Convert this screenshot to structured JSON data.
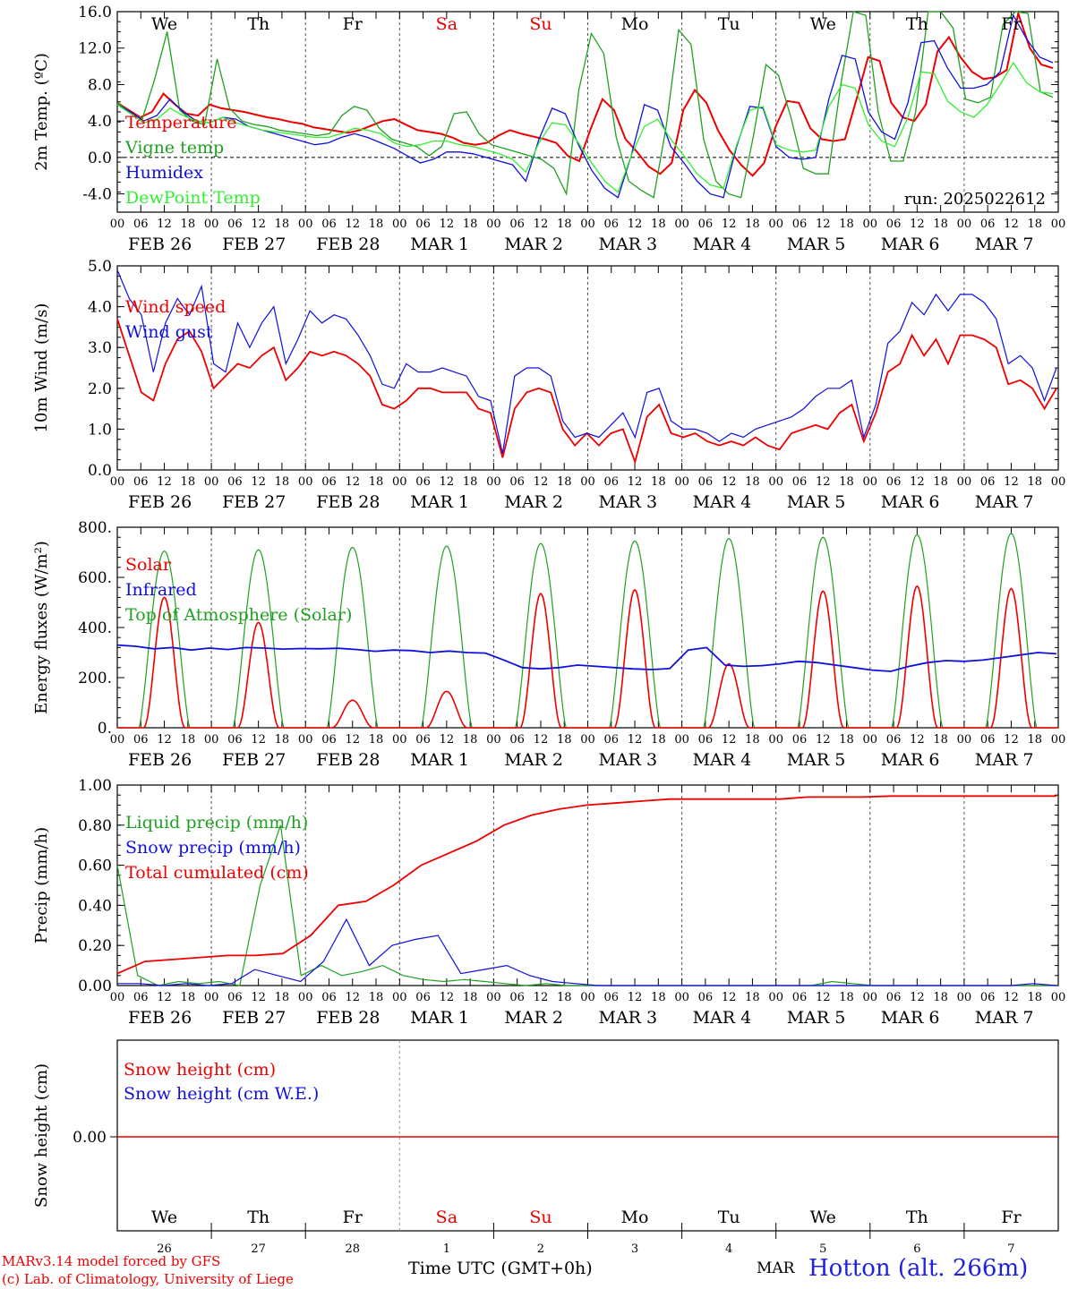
{
  "footer": {
    "credit_line1": "MARv3.14 model forced by GFS",
    "credit_line2": "(c) Lab. of Climatology, University of Liege",
    "xaxis_title": "Time UTC (GMT+0h)",
    "month_label": "MAR",
    "station": "Hotton (alt. 266m)"
  },
  "chart_data": [
    {
      "type": "line",
      "ylabel": "2m Temp. (ºC)",
      "ylim": [
        -6,
        16
      ],
      "yticks": [
        "16.0",
        "12.0",
        "8.0",
        "4.0",
        "0.0",
        "-4.0"
      ],
      "annotation": "run: 2025022612",
      "day_names": [
        "We",
        "Th",
        "Fr",
        "Sa",
        "Su",
        "Mo",
        "Tu",
        "We",
        "Th",
        "Fr"
      ],
      "date_labels": [
        "FEB 26",
        "FEB 27",
        "FEB 28",
        "MAR  1",
        "MAR  2",
        "MAR  3",
        "MAR  4",
        "MAR  5",
        "MAR  6",
        "MAR  7"
      ],
      "hour_labels": [
        "00",
        "06",
        "12",
        "18"
      ],
      "x_hours_step": 6,
      "series": [
        {
          "name": "Temperature",
          "color": "#ee0000",
          "values": [
            6.0,
            5.2,
            4.4,
            5.0,
            7.0,
            5.8,
            4.8,
            4.6,
            5.8,
            5.4,
            5.2,
            5.0,
            4.7,
            4.4,
            4.2,
            3.9,
            3.7,
            3.3,
            3.1,
            2.9,
            2.7,
            3.0,
            3.5,
            4.0,
            4.2,
            3.6,
            3.0,
            2.8,
            2.6,
            2.2,
            1.6,
            1.4,
            1.6,
            2.4,
            3.0,
            2.6,
            2.3,
            2.0,
            1.6,
            0.2,
            -0.4,
            3.2,
            6.4,
            5.2,
            2.0,
            0.6,
            -1.0,
            -1.8,
            -0.6,
            5.2,
            7.4,
            6.0,
            3.0,
            0.8,
            -0.8,
            -2.0,
            -0.6,
            3.4,
            6.2,
            6.0,
            3.2,
            2.0,
            1.8,
            2.0,
            6.4,
            11.0,
            10.6,
            6.0,
            4.4,
            4.0,
            5.8,
            11.6,
            13.2,
            11.0,
            9.4,
            8.6,
            8.8,
            9.6,
            15.8,
            12.0,
            10.2,
            9.8
          ]
        },
        {
          "name": "Vigne temp",
          "color": "#20a020",
          "values": [
            6.0,
            5.0,
            4.2,
            8.6,
            13.8,
            5.2,
            4.0,
            3.6,
            10.8,
            5.4,
            4.0,
            3.6,
            3.4,
            3.0,
            2.8,
            2.6,
            2.4,
            2.6,
            4.6,
            5.6,
            5.2,
            3.2,
            2.0,
            1.6,
            1.2,
            0.2,
            1.2,
            4.8,
            5.0,
            2.6,
            1.4,
            1.0,
            0.6,
            0.2,
            -0.2,
            -1.2,
            -4.0,
            7.4,
            13.6,
            11.4,
            2.2,
            -2.6,
            -3.6,
            -4.4,
            3.4,
            14.0,
            12.4,
            2.0,
            -2.6,
            -4.0,
            -4.4,
            2.4,
            10.2,
            9.0,
            4.4,
            -1.2,
            -1.8,
            -1.8,
            8.0,
            16.0,
            15.6,
            5.0,
            -0.4,
            -0.4,
            5.0,
            16.0,
            16.0,
            14.2,
            6.4,
            6.0,
            6.6,
            14.6,
            16.0,
            15.8,
            7.2,
            6.6
          ]
        },
        {
          "name": "Humidex",
          "color": "#1010dd",
          "values": [
            5.8,
            5.0,
            4.0,
            4.6,
            6.4,
            5.0,
            4.0,
            3.8,
            4.4,
            4.2,
            3.4,
            3.0,
            2.6,
            2.2,
            1.8,
            1.4,
            1.6,
            2.2,
            2.6,
            2.2,
            1.6,
            1.0,
            0.2,
            -0.6,
            -0.2,
            0.6,
            0.6,
            0.4,
            0.0,
            -0.4,
            -0.8,
            -2.6,
            2.0,
            5.4,
            4.8,
            1.4,
            -1.4,
            -3.4,
            -4.4,
            0.2,
            5.8,
            5.2,
            1.2,
            -0.6,
            -2.6,
            -4.0,
            -4.4,
            1.2,
            5.6,
            5.4,
            1.2,
            0.0,
            -0.2,
            0.0,
            6.4,
            11.2,
            10.8,
            5.0,
            2.8,
            2.0,
            6.0,
            12.6,
            12.8,
            9.8,
            7.6,
            7.6,
            8.0,
            9.4,
            15.6,
            13.0,
            11.0,
            10.4
          ]
        },
        {
          "name": "DewPoint Temp",
          "color": "#33ee33",
          "values": [
            5.8,
            4.8,
            3.8,
            4.2,
            5.4,
            4.6,
            4.0,
            3.8,
            4.4,
            3.8,
            3.4,
            3.0,
            2.8,
            2.6,
            2.4,
            2.2,
            2.2,
            2.6,
            3.2,
            3.0,
            2.6,
            1.6,
            1.2,
            1.4,
            1.8,
            1.8,
            1.4,
            1.2,
            0.8,
            0.4,
            -0.2,
            -1.6,
            1.6,
            3.8,
            3.6,
            1.6,
            -0.6,
            -2.6,
            -3.8,
            0.2,
            3.4,
            4.2,
            2.0,
            0.2,
            -1.8,
            -3.0,
            -3.4,
            1.4,
            5.2,
            5.6,
            1.4,
            0.8,
            0.6,
            0.8,
            5.6,
            8.0,
            7.6,
            3.6,
            1.8,
            1.2,
            4.4,
            9.4,
            9.2,
            6.2,
            5.0,
            4.4,
            5.8,
            8.0,
            10.4,
            8.2,
            7.2,
            7.0
          ]
        }
      ]
    },
    {
      "type": "line",
      "ylabel": "10m Wind (m/s)",
      "ylim": [
        0,
        5
      ],
      "yticks": [
        "5.0",
        "4.0",
        "3.0",
        "2.0",
        "1.0",
        "0.0"
      ],
      "date_labels": [
        "FEB 26",
        "FEB 27",
        "FEB 28",
        "MAR  1",
        "MAR  2",
        "MAR  3",
        "MAR  4",
        "MAR  5",
        "MAR  6",
        "MAR  7"
      ],
      "hour_labels": [
        "00",
        "06",
        "12",
        "18"
      ],
      "x_hours_step": 6,
      "series": [
        {
          "name": "Wind speed",
          "color": "#ee0000",
          "values": [
            3.7,
            2.8,
            1.9,
            1.7,
            2.6,
            3.2,
            3.4,
            2.9,
            2.0,
            2.3,
            2.6,
            2.5,
            2.8,
            3.0,
            2.2,
            2.5,
            2.9,
            2.8,
            2.9,
            2.8,
            2.6,
            2.3,
            1.6,
            1.5,
            1.7,
            2.0,
            2.0,
            1.9,
            1.9,
            1.9,
            1.5,
            1.4,
            0.3,
            1.5,
            1.9,
            2.0,
            1.9,
            1.0,
            0.6,
            0.9,
            0.6,
            0.9,
            1.0,
            0.2,
            1.3,
            1.6,
            0.9,
            0.8,
            0.9,
            0.7,
            0.6,
            0.7,
            0.6,
            0.8,
            0.6,
            0.5,
            0.9,
            1.0,
            1.1,
            1.0,
            1.4,
            1.6,
            0.7,
            1.4,
            2.4,
            2.6,
            3.3,
            2.8,
            3.2,
            2.6,
            3.3,
            3.3,
            3.2,
            3.0,
            2.1,
            2.2,
            2.0,
            1.5,
            2.0
          ]
        },
        {
          "name": "Wind gust",
          "color": "#1010dd",
          "values": [
            4.9,
            4.2,
            3.8,
            2.4,
            3.6,
            4.2,
            3.8,
            4.5,
            2.6,
            2.4,
            3.6,
            3.0,
            3.6,
            4.0,
            2.6,
            3.2,
            3.9,
            3.6,
            3.8,
            3.7,
            3.3,
            2.8,
            2.1,
            2.0,
            2.6,
            2.4,
            2.4,
            2.5,
            2.4,
            2.3,
            1.8,
            1.7,
            0.4,
            2.3,
            2.5,
            2.5,
            2.3,
            1.2,
            0.8,
            0.9,
            0.8,
            1.1,
            1.4,
            0.8,
            1.9,
            2.0,
            1.2,
            1.0,
            1.0,
            0.9,
            0.7,
            0.9,
            0.8,
            1.0,
            1.1,
            1.2,
            1.3,
            1.5,
            1.8,
            2.0,
            2.0,
            2.2,
            0.8,
            1.6,
            3.1,
            3.4,
            4.1,
            3.8,
            4.3,
            3.9,
            4.3,
            4.3,
            4.1,
            3.7,
            2.6,
            2.8,
            2.5,
            1.7,
            2.5
          ]
        }
      ]
    },
    {
      "type": "line",
      "ylabel": "Energy fluxes (W/m²)",
      "ylim": [
        0,
        800
      ],
      "yticks": [
        "800.",
        "600.",
        "400.",
        "200.",
        "0."
      ],
      "date_labels": [
        "FEB 26",
        "FEB 27",
        "FEB 28",
        "MAR  1",
        "MAR  2",
        "MAR  3",
        "MAR  4",
        "MAR  5",
        "MAR  6",
        "MAR  7"
      ],
      "hour_labels": [
        "00",
        "06",
        "12",
        "18"
      ],
      "x_hours_step": 6,
      "series": [
        {
          "name": "Solar",
          "color": "#ee0000",
          "peaks": [
            520,
            420,
            110,
            145,
            535,
            550,
            255,
            545,
            565,
            555
          ]
        },
        {
          "name": "Infrared",
          "color": "#1010dd",
          "values": [
            330,
            325,
            315,
            320,
            310,
            318,
            312,
            320,
            318,
            314,
            316,
            315,
            317,
            312,
            305,
            310,
            308,
            300,
            306,
            300,
            298,
            270,
            240,
            235,
            240,
            250,
            245,
            240,
            235,
            232,
            236,
            310,
            320,
            250,
            245,
            248,
            255,
            265,
            260,
            250,
            240,
            230,
            225,
            245,
            260,
            268,
            265,
            270,
            280,
            290,
            300,
            295
          ]
        },
        {
          "name": "Top of Atmosphere (Solar)",
          "color": "#20a020",
          "peaks": [
            705,
            710,
            720,
            725,
            735,
            745,
            755,
            760,
            770,
            775
          ]
        }
      ]
    },
    {
      "type": "line",
      "ylabel": "Precip (mm/h)",
      "ylim": [
        0,
        1.0
      ],
      "yticks": [
        "1.00",
        "0.80",
        "0.60",
        "0.40",
        "0.20",
        "0.00"
      ],
      "date_labels": [
        "FEB 26",
        "FEB 27",
        "FEB 28",
        "MAR  1",
        "MAR  2",
        "MAR  3",
        "MAR  4",
        "MAR  5",
        "MAR  6",
        "MAR  7"
      ],
      "hour_labels": [
        "00",
        "06",
        "12",
        "18"
      ],
      "x_hours_step": 6,
      "series": [
        {
          "name": "Liquid precip (mm/h)",
          "color": "#20a020",
          "values": [
            0.6,
            0.05,
            0.0,
            0.02,
            0.01,
            0.02,
            0.0,
            0.5,
            0.8,
            0.05,
            0.1,
            0.05,
            0.07,
            0.1,
            0.05,
            0.03,
            0.02,
            0.03,
            0.02,
            0.01,
            0.0,
            0.01,
            0.0,
            0.0,
            0.0,
            0.0,
            0.0,
            0.0,
            0.0,
            0.0,
            0.0,
            0.0,
            0.0,
            0.0,
            0.0,
            0.02,
            0.01,
            0.0,
            0.0,
            0.0,
            0.0,
            0.0,
            0.0,
            0.0,
            0.0,
            0.0,
            0.0
          ]
        },
        {
          "name": "Snow precip (mm/h)",
          "color": "#1010dd",
          "values": [
            0.01,
            0.01,
            0.0,
            0.01,
            0.0,
            0.01,
            0.08,
            0.05,
            0.02,
            0.12,
            0.33,
            0.1,
            0.2,
            0.23,
            0.25,
            0.06,
            0.08,
            0.1,
            0.05,
            0.02,
            0.01,
            0.0,
            0.0,
            0.0,
            0.0,
            0.0,
            0.0,
            0.0,
            0.0,
            0.0,
            0.0,
            0.0,
            0.0,
            0.0,
            0.0,
            0.0,
            0.0,
            0.0,
            0.0,
            0.0,
            0.01,
            0.0
          ]
        },
        {
          "name": "Total cumulated (cm)",
          "color": "#ee0000",
          "values": [
            0.06,
            0.12,
            0.13,
            0.14,
            0.15,
            0.15,
            0.16,
            0.25,
            0.4,
            0.42,
            0.5,
            0.6,
            0.66,
            0.72,
            0.8,
            0.85,
            0.88,
            0.9,
            0.91,
            0.92,
            0.93,
            0.93,
            0.93,
            0.93,
            0.93,
            0.94,
            0.94,
            0.94,
            0.945,
            0.945,
            0.945,
            0.945,
            0.945,
            0.945,
            0.945
          ]
        }
      ]
    },
    {
      "type": "line",
      "ylabel": "Snow height (cm)",
      "yticks": [
        "0.00"
      ],
      "day_names": [
        "We",
        "Th",
        "Fr",
        "Sa",
        "Su",
        "Mo",
        "Tu",
        "We",
        "Th",
        "Fr"
      ],
      "day_numbers": [
        "26",
        "27",
        "28",
        "1",
        "2",
        "3",
        "4",
        "5",
        "6",
        "7"
      ],
      "series": [
        {
          "name": "Snow height (cm)",
          "color": "#ee0000",
          "values": [
            0,
            0,
            0,
            0,
            0,
            0,
            0,
            0,
            0,
            0,
            0
          ]
        },
        {
          "name": "Snow height (cm W.E.)",
          "color": "#1010dd",
          "values": [
            0,
            0,
            0,
            0,
            0,
            0,
            0,
            0,
            0,
            0,
            0
          ]
        }
      ]
    }
  ]
}
